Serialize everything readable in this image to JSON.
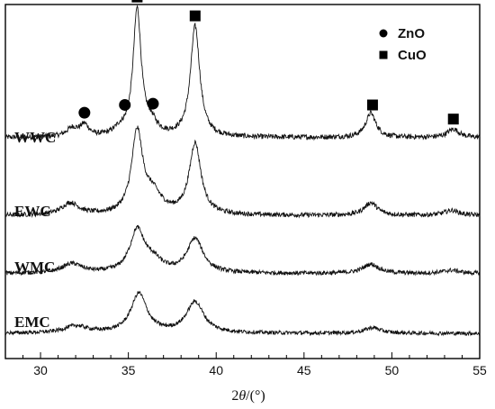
{
  "chart_data": {
    "type": "line",
    "xlabel_prefix": "2",
    "xlabel_var": "θ",
    "xlabel_unit": "/(°)",
    "xlim": [
      28,
      55
    ],
    "xticks": [
      30,
      35,
      40,
      45,
      50,
      55
    ],
    "legend": {
      "position": "top-right",
      "entries": [
        {
          "label": "ZnO",
          "marker": "circle"
        },
        {
          "label": "CuO",
          "marker": "square"
        }
      ]
    },
    "series": [
      {
        "name": "WWC",
        "baseline": 0.5,
        "peaks": [
          {
            "x": 31.8,
            "h": 0.9,
            "w": 0.4
          },
          {
            "x": 32.5,
            "h": 1.2,
            "w": 0.3
          },
          {
            "x": 34.5,
            "h": 0.6,
            "w": 0.4
          },
          {
            "x": 35.5,
            "h": 13.5,
            "w": 0.28
          },
          {
            "x": 36.3,
            "h": 1.2,
            "w": 0.4
          },
          {
            "x": 38.8,
            "h": 11.8,
            "w": 0.32
          },
          {
            "x": 48.8,
            "h": 2.6,
            "w": 0.35
          },
          {
            "x": 53.5,
            "h": 0.9,
            "w": 0.4
          }
        ],
        "markers": [
          {
            "x": 32.5,
            "type": "circle"
          },
          {
            "x": 34.8,
            "type": "circle"
          },
          {
            "x": 36.4,
            "type": "circle"
          },
          {
            "x": 35.5,
            "type": "square"
          },
          {
            "x": 38.8,
            "type": "square"
          },
          {
            "x": 48.9,
            "type": "square"
          },
          {
            "x": 53.5,
            "type": "square"
          }
        ]
      },
      {
        "name": "EWC",
        "baseline": 0.5,
        "peaks": [
          {
            "x": 31.7,
            "h": 1.4,
            "w": 0.6
          },
          {
            "x": 35.5,
            "h": 9.6,
            "w": 0.38
          },
          {
            "x": 36.4,
            "h": 2.2,
            "w": 0.6
          },
          {
            "x": 38.8,
            "h": 8.4,
            "w": 0.4
          },
          {
            "x": 48.8,
            "h": 1.5,
            "w": 0.45
          },
          {
            "x": 53.4,
            "h": 0.6,
            "w": 0.5
          }
        ],
        "markers": []
      },
      {
        "name": "WMC",
        "baseline": 0.5,
        "peaks": [
          {
            "x": 31.8,
            "h": 1.2,
            "w": 0.7
          },
          {
            "x": 35.5,
            "h": 5.4,
            "w": 0.5
          },
          {
            "x": 36.4,
            "h": 1.4,
            "w": 0.6
          },
          {
            "x": 38.8,
            "h": 4.4,
            "w": 0.55
          },
          {
            "x": 48.8,
            "h": 1.2,
            "w": 0.55
          },
          {
            "x": 53.4,
            "h": 0.4,
            "w": 0.6
          }
        ],
        "markers": []
      },
      {
        "name": "EMC",
        "baseline": 0.5,
        "peaks": [
          {
            "x": 32.0,
            "h": 1.0,
            "w": 0.8
          },
          {
            "x": 35.6,
            "h": 5.6,
            "w": 0.55
          },
          {
            "x": 38.8,
            "h": 4.4,
            "w": 0.6
          },
          {
            "x": 48.9,
            "h": 0.8,
            "w": 0.55
          }
        ],
        "markers": []
      }
    ]
  }
}
